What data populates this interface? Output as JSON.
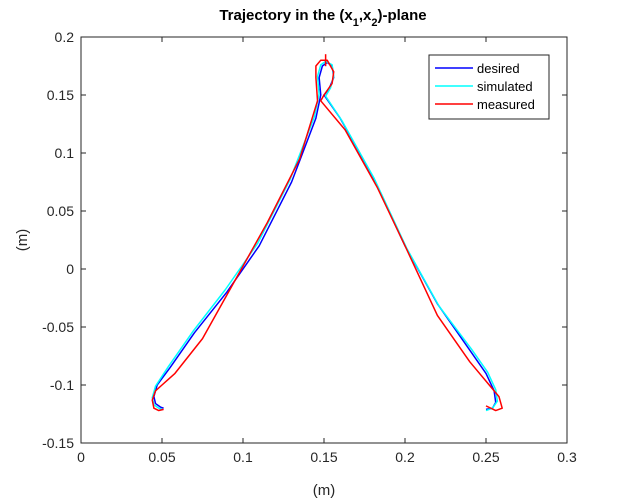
{
  "chart_data": {
    "type": "line",
    "title": {
      "pre": "Trajectory in the (x",
      "sub1": "1",
      "mid": ",x",
      "sub2": "2",
      "post": ")-plane"
    },
    "xlabel": "(m)",
    "ylabel": "(m)",
    "xlim": [
      0,
      0.3
    ],
    "ylim": [
      -0.15,
      0.2
    ],
    "x_ticks": [
      "0",
      "0.05",
      "0.1",
      "0.15",
      "0.2",
      "0.25",
      "0.3"
    ],
    "y_ticks": [
      "-0.15",
      "-0.1",
      "-0.05",
      "0",
      "0.05",
      "0.1",
      "0.15",
      "0.2"
    ],
    "grid": false,
    "legend_position": "top-right",
    "series": [
      {
        "name": "desired",
        "color": "#0000ff",
        "x": [
          0.051,
          0.049,
          0.046,
          0.045,
          0.047,
          0.055,
          0.07,
          0.09,
          0.11,
          0.13,
          0.145,
          0.148,
          0.147,
          0.149,
          0.152,
          0.155,
          0.156,
          0.153,
          0.15,
          0.16,
          0.18,
          0.2,
          0.22,
          0.24,
          0.25,
          0.255,
          0.256,
          0.254,
          0.25
        ],
        "y": [
          -0.12,
          -0.119,
          -0.116,
          -0.11,
          -0.1,
          -0.085,
          -0.055,
          -0.02,
          0.02,
          0.075,
          0.13,
          0.15,
          0.165,
          0.175,
          0.178,
          0.175,
          0.165,
          0.155,
          0.15,
          0.13,
          0.08,
          0.02,
          -0.03,
          -0.07,
          -0.09,
          -0.105,
          -0.115,
          -0.12,
          -0.121
        ]
      },
      {
        "name": "simulated",
        "color": "#00ffff",
        "x": [
          0.05,
          0.048,
          0.045,
          0.044,
          0.046,
          0.054,
          0.069,
          0.089,
          0.109,
          0.129,
          0.144,
          0.147,
          0.146,
          0.148,
          0.151,
          0.155,
          0.156,
          0.154,
          0.151,
          0.161,
          0.181,
          0.201,
          0.221,
          0.241,
          0.251,
          0.256,
          0.257,
          0.254,
          0.25
        ],
        "y": [
          -0.121,
          -0.12,
          -0.117,
          -0.111,
          -0.101,
          -0.084,
          -0.054,
          -0.018,
          0.022,
          0.077,
          0.131,
          0.151,
          0.166,
          0.176,
          0.179,
          0.176,
          0.166,
          0.156,
          0.149,
          0.128,
          0.078,
          0.018,
          -0.032,
          -0.069,
          -0.089,
          -0.104,
          -0.114,
          -0.12,
          -0.122
        ]
      },
      {
        "name": "measured",
        "color": "#ff0000",
        "x": [
          0.051,
          0.048,
          0.045,
          0.044,
          0.046,
          0.05,
          0.058,
          0.075,
          0.095,
          0.115,
          0.135,
          0.146,
          0.145,
          0.145,
          0.148,
          0.152,
          0.156,
          0.155,
          0.15,
          0.148,
          0.163,
          0.183,
          0.2,
          0.22,
          0.24,
          0.252,
          0.258,
          0.26,
          0.256,
          0.25
        ],
        "y": [
          -0.121,
          -0.122,
          -0.12,
          -0.113,
          -0.105,
          -0.1,
          -0.09,
          -0.06,
          -0.01,
          0.04,
          0.095,
          0.145,
          0.165,
          0.175,
          0.18,
          0.18,
          0.17,
          0.16,
          0.15,
          0.145,
          0.12,
          0.07,
          0.02,
          -0.04,
          -0.08,
          -0.1,
          -0.11,
          -0.12,
          -0.122,
          -0.118
        ]
      }
    ],
    "annotations": [
      {
        "type": "marker",
        "shape": "tick",
        "color": "#ff0000",
        "x": 0.151,
        "y": 0.18
      }
    ]
  }
}
